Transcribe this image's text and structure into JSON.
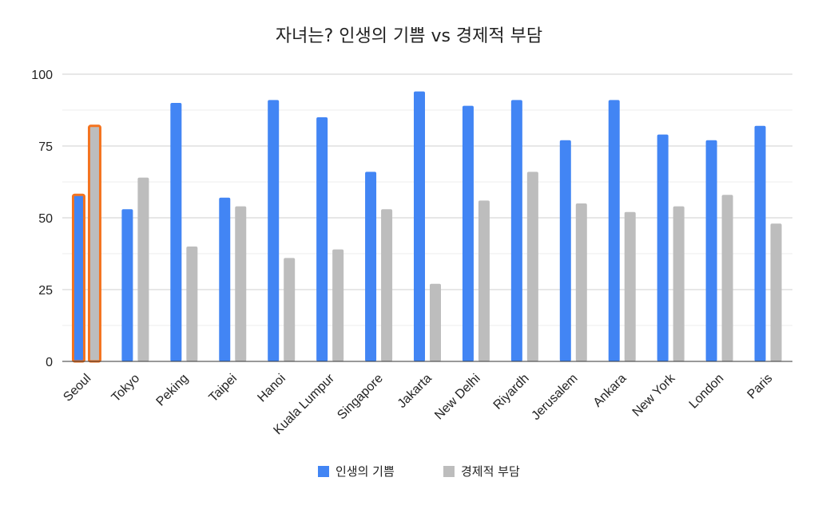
{
  "chart_data": {
    "type": "bar",
    "title": "자녀는? 인생의 기쁨 vs 경제적 부담",
    "xlabel": "",
    "ylabel": "",
    "ylim": [
      0,
      100
    ],
    "yticks": [
      0,
      25,
      50,
      75,
      100
    ],
    "grid": true,
    "legend_position": "bottom",
    "categories": [
      "Seoul",
      "Tokyo",
      "Peking",
      "Taipei",
      "Hanoi",
      "Kuala Lumpur",
      "Singapore",
      "Jakarta",
      "New Delhi",
      "Riyardh",
      "Jerusalem",
      "Ankara",
      "New York",
      "London",
      "Paris"
    ],
    "series": [
      {
        "name": "인생의 기쁨",
        "color": "#4285f4",
        "values": [
          58,
          53,
          90,
          57,
          91,
          85,
          66,
          94,
          89,
          91,
          77,
          91,
          79,
          77,
          82
        ]
      },
      {
        "name": "경제적 부담",
        "color": "#bdbdbd",
        "values": [
          82,
          64,
          40,
          54,
          36,
          39,
          53,
          27,
          56,
          66,
          55,
          52,
          54,
          58,
          48
        ]
      }
    ],
    "highlight": {
      "category": "Seoul",
      "color": "#f4731f"
    }
  }
}
